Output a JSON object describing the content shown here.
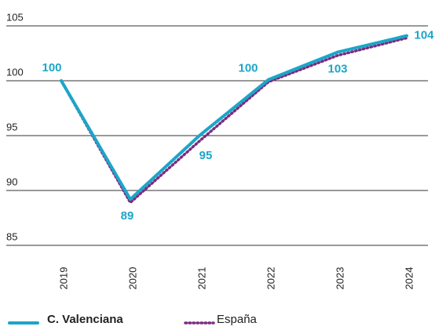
{
  "chart_data": {
    "type": "line",
    "categories": [
      "2019",
      "2020",
      "2021",
      "2022",
      "2023",
      "2024"
    ],
    "series": [
      {
        "name": "C. Valenciana",
        "color": "#1ba6c9",
        "values": [
          100,
          89.2,
          95.0,
          100.1,
          102.6,
          104.1
        ],
        "value_labels": [
          "100",
          "89",
          "95",
          "100",
          "103",
          "104"
        ]
      },
      {
        "name": "España",
        "color": "#7a2c80",
        "values": [
          100,
          88.9,
          94.5,
          99.9,
          102.3,
          103.9
        ]
      }
    ],
    "ylim": [
      85,
      105
    ],
    "yticks": [
      85,
      90,
      95,
      100,
      105
    ],
    "grid": true,
    "legend": "bottom"
  }
}
